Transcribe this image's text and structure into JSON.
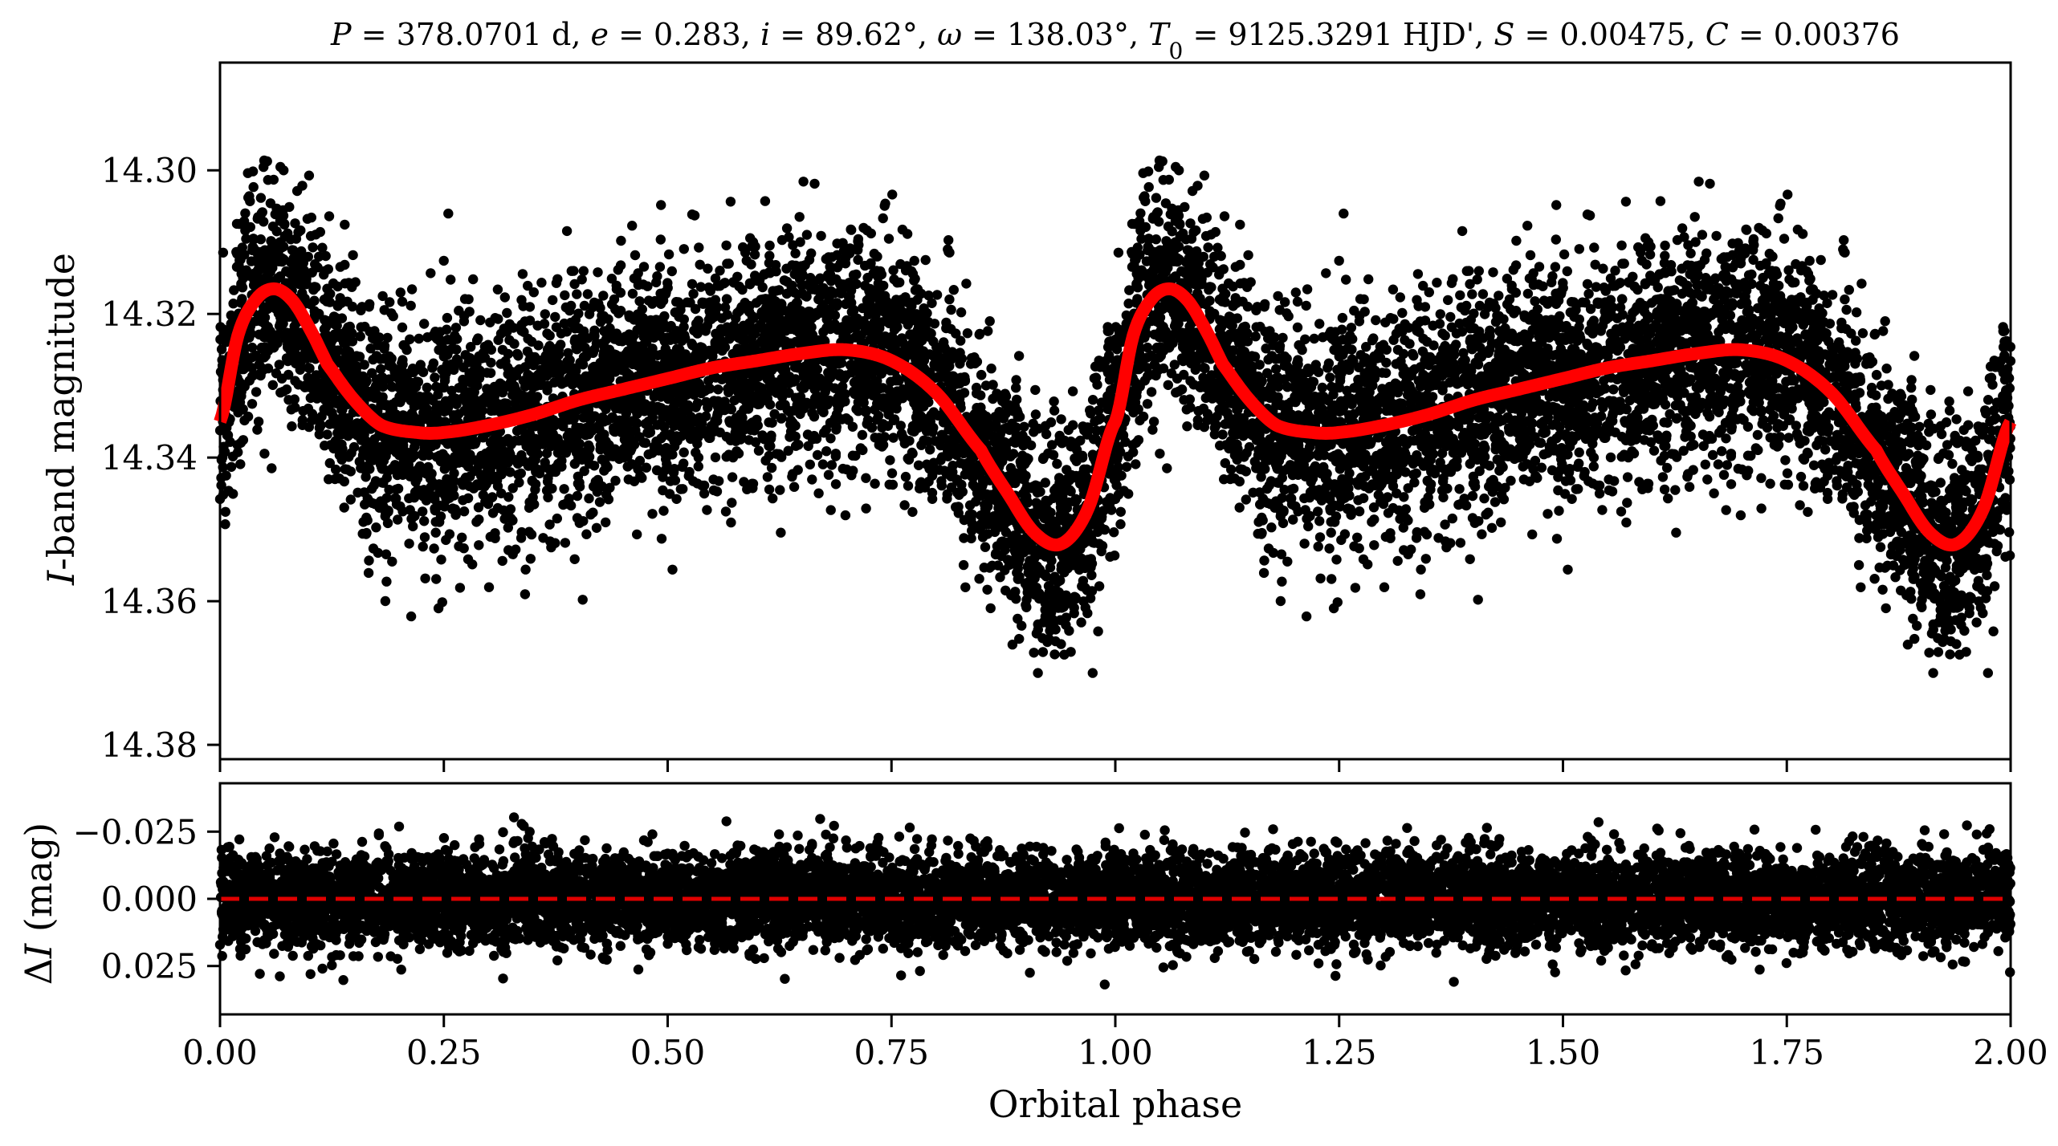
{
  "colors": {
    "points": "#000000",
    "model": "#ff0000",
    "zero_line": "#e00000",
    "axes": "#000000",
    "background": "#ffffff"
  },
  "chart_data": [
    {
      "type": "scatter",
      "panel": "top",
      "title": {
        "parts": [
          {
            "t": "P",
            "style": "italic"
          },
          {
            "t": " = 378.0701 d, "
          },
          {
            "t": "e",
            "style": "italic"
          },
          {
            "t": " = 0.283, "
          },
          {
            "t": "i",
            "style": "italic"
          },
          {
            "t": " = 89.62°, "
          },
          {
            "t": "ω",
            "style": "italic"
          },
          {
            "t": " = 138.03°, "
          },
          {
            "t": "T",
            "style": "italic"
          },
          {
            "t": "0",
            "style": "sub"
          },
          {
            "t": " = 9125.3291 HJD', "
          },
          {
            "t": "S",
            "style": "italic"
          },
          {
            "t": " = 0.00475, "
          },
          {
            "t": "C",
            "style": "italic"
          },
          {
            "t": " = 0.00376"
          }
        ]
      },
      "xlabel": "",
      "ylabel": {
        "parts": [
          {
            "t": "I",
            "style": "italic"
          },
          {
            "t": "-band magnitude"
          }
        ]
      },
      "xlim": [
        0.0,
        2.0
      ],
      "ylim": [
        14.382,
        14.285
      ],
      "y_inverted": true,
      "yticks": [
        14.3,
        14.32,
        14.34,
        14.36,
        14.38
      ],
      "ytick_labels": [
        "14.30",
        "14.32",
        "14.34",
        "14.36",
        "14.38"
      ],
      "xticks": [
        0.0,
        0.25,
        0.5,
        0.75,
        1.0,
        1.25,
        1.5,
        1.75,
        2.0
      ],
      "grid": false,
      "legend": "none",
      "series": [
        {
          "kind": "points",
          "description_points_per_phase": 5000,
          "x": [
            0.0,
            0.02,
            0.04,
            0.06,
            0.08,
            0.1,
            0.12,
            0.15,
            0.18,
            0.22,
            0.25,
            0.3,
            0.35,
            0.4,
            0.45,
            0.5,
            0.55,
            0.6,
            0.65,
            0.7,
            0.75,
            0.8,
            0.85,
            0.88,
            0.91,
            0.94,
            0.97,
            1.0
          ],
          "y": [
            14.335,
            14.323,
            14.318,
            14.3165,
            14.318,
            14.322,
            14.327,
            14.332,
            14.3355,
            14.3365,
            14.3365,
            14.3355,
            14.334,
            14.332,
            14.3305,
            14.329,
            14.3275,
            14.3265,
            14.3255,
            14.325,
            14.3265,
            14.331,
            14.339,
            14.345,
            14.3505,
            14.352,
            14.347,
            14.335
          ],
          "scatter_sigma": 0.008,
          "seed": 7
        },
        {
          "kind": "line",
          "x": [
            0.0,
            0.02,
            0.04,
            0.06,
            0.08,
            0.1,
            0.12,
            0.15,
            0.18,
            0.22,
            0.25,
            0.3,
            0.35,
            0.4,
            0.45,
            0.5,
            0.55,
            0.6,
            0.65,
            0.7,
            0.75,
            0.8,
            0.85,
            0.88,
            0.91,
            0.94,
            0.97,
            1.0
          ],
          "y": [
            14.335,
            14.323,
            14.318,
            14.3165,
            14.318,
            14.322,
            14.327,
            14.332,
            14.3355,
            14.3365,
            14.3365,
            14.3355,
            14.334,
            14.332,
            14.3305,
            14.329,
            14.3275,
            14.3265,
            14.3255,
            14.325,
            14.3265,
            14.331,
            14.339,
            14.345,
            14.3505,
            14.352,
            14.347,
            14.335
          ],
          "periodic": true,
          "period": 1.0
        }
      ]
    },
    {
      "type": "scatter",
      "panel": "bottom",
      "title": "",
      "xlabel": "Orbital phase",
      "ylabel": {
        "parts": [
          {
            "t": "Δ"
          },
          {
            "t": "I",
            "style": "italic"
          },
          {
            "t": " (mag)"
          }
        ]
      },
      "xlim": [
        0.0,
        2.0
      ],
      "ylim": [
        0.043,
        -0.043
      ],
      "y_inverted": true,
      "yticks": [
        -0.025,
        0.0,
        0.025
      ],
      "ytick_labels": [
        "−0.025",
        "0.000",
        "0.025"
      ],
      "xticks": [
        0.0,
        0.25,
        0.5,
        0.75,
        1.0,
        1.25,
        1.5,
        1.75,
        2.0
      ],
      "xtick_labels": [
        "0.00",
        "0.25",
        "0.50",
        "0.75",
        "1.00",
        "1.25",
        "1.50",
        "1.75",
        "2.00"
      ],
      "grid": false,
      "legend": "none",
      "series": [
        {
          "kind": "points",
          "residual_sigma": 0.0085,
          "seed": 11
        },
        {
          "kind": "hline",
          "y": 0.0,
          "style": "dashed"
        }
      ]
    }
  ]
}
